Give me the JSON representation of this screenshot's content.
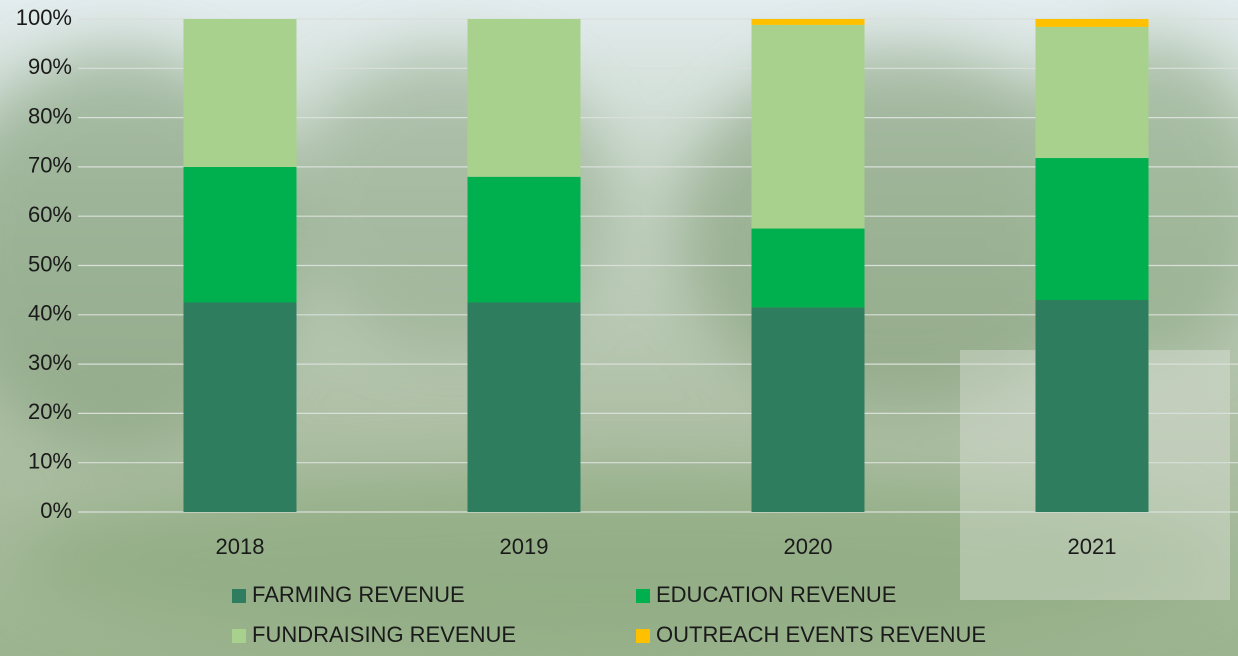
{
  "chart_data": {
    "type": "stacked_bar",
    "categories": [
      "2018",
      "2019",
      "2020",
      "2021"
    ],
    "series": [
      {
        "name": "FARMING REVENUE",
        "color": "#2e7d5f",
        "values": [
          42.5,
          42.5,
          41.5,
          43
        ]
      },
      {
        "name": "EDUCATION REVENUE",
        "color": "#00b04f",
        "values": [
          27.5,
          25.5,
          16,
          28.8
        ]
      },
      {
        "name": "FUNDRAISING REVENUE",
        "color": "#a9d18e",
        "values": [
          30,
          32,
          41.3,
          26.6
        ]
      },
      {
        "name": "OUTREACH EVENTS REVENUE",
        "color": "#ffc000",
        "values": [
          0,
          0,
          1.2,
          1.6
        ]
      }
    ],
    "ylim": [
      0,
      100
    ],
    "yticks": [
      {
        "value": 0,
        "label": "0%"
      },
      {
        "value": 10,
        "label": "10%"
      },
      {
        "value": 20,
        "label": "20%"
      },
      {
        "value": 30,
        "label": "30%"
      },
      {
        "value": 40,
        "label": "40%"
      },
      {
        "value": 50,
        "label": "50%"
      },
      {
        "value": 60,
        "label": "60%"
      },
      {
        "value": 70,
        "label": "70%"
      },
      {
        "value": 80,
        "label": "80%"
      },
      {
        "value": 90,
        "label": "90%"
      },
      {
        "value": 100,
        "label": "100%"
      }
    ],
    "grid": true,
    "legend": "bottom"
  }
}
